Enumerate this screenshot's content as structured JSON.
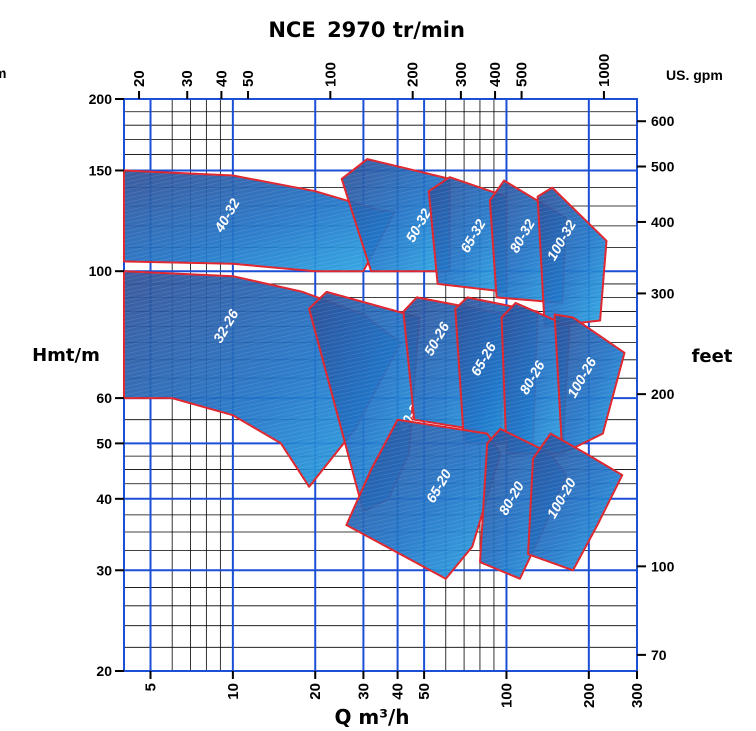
{
  "chart_data": {
    "type": "area",
    "title_left": "NCE",
    "title_right": "2970 tr/min",
    "xlabel": "Q m³/h",
    "ylabel_left": "Hmt/m",
    "ylabel_right": "feet",
    "top_axis_unit": "US. gpm",
    "left_edge_unit": "m",
    "x_scale": "log",
    "y_scale": "log",
    "xlim": [
      4,
      300
    ],
    "ylim": [
      20,
      200
    ],
    "grid": true,
    "x_ticks": [
      {
        "value": 5,
        "label": "5"
      },
      {
        "value": 10,
        "label": "10"
      },
      {
        "value": 20,
        "label": "20"
      },
      {
        "value": 30,
        "label": "30"
      },
      {
        "value": 40,
        "label": "40"
      },
      {
        "value": 50,
        "label": "50"
      },
      {
        "value": 100,
        "label": "100"
      },
      {
        "value": 200,
        "label": "200"
      },
      {
        "value": 300,
        "label": "300"
      }
    ],
    "y_ticks": [
      {
        "value": 20,
        "label": "20"
      },
      {
        "value": 30,
        "label": "30"
      },
      {
        "value": 40,
        "label": "40"
      },
      {
        "value": 50,
        "label": "50"
      },
      {
        "value": 60,
        "label": "60"
      },
      {
        "value": 100,
        "label": "100"
      },
      {
        "value": 150,
        "label": "150"
      },
      {
        "value": 200,
        "label": "200"
      }
    ],
    "top_ticks": [
      {
        "value": 4.54,
        "label": "20"
      },
      {
        "value": 6.81,
        "label": "30"
      },
      {
        "value": 9.08,
        "label": "40"
      },
      {
        "value": 11.36,
        "label": "50"
      },
      {
        "value": 22.71,
        "label": "100"
      },
      {
        "value": 45.42,
        "label": "200"
      },
      {
        "value": 68.14,
        "label": "300"
      },
      {
        "value": 90.85,
        "label": "400"
      },
      {
        "value": 113.56,
        "label": "500"
      },
      {
        "value": 227.12,
        "label": "1000"
      }
    ],
    "right_ticks": [
      {
        "value": 21.34,
        "label": "70"
      },
      {
        "value": 30.48,
        "label": "100"
      },
      {
        "value": 60.96,
        "label": "200"
      },
      {
        "value": 91.44,
        "label": "300"
      },
      {
        "value": 121.92,
        "label": "400"
      },
      {
        "value": 152.4,
        "label": "500"
      },
      {
        "value": 182.88,
        "label": "600"
      }
    ],
    "series": [
      {
        "name": "40-32",
        "label_at": [
          9.6,
          125
        ],
        "polygon": [
          [
            4,
            150
          ],
          [
            10,
            147
          ],
          [
            20,
            138
          ],
          [
            34,
            128
          ],
          [
            39,
            127
          ],
          [
            30,
            100
          ],
          [
            20,
            100
          ],
          [
            10,
            103
          ],
          [
            4,
            104
          ]
        ]
      },
      {
        "name": "32-26",
        "label_at": [
          9.5,
          80
        ],
        "polygon": [
          [
            4,
            100
          ],
          [
            10,
            98
          ],
          [
            18,
            92
          ],
          [
            30,
            84
          ],
          [
            41,
            75
          ],
          [
            28,
            53
          ],
          [
            19,
            42
          ],
          [
            15,
            50
          ],
          [
            10,
            56
          ],
          [
            6,
            60
          ],
          [
            4,
            60
          ]
        ]
      },
      {
        "name": "50-32",
        "label_at": [
          48,
          120
        ],
        "polygon": [
          [
            25,
            145
          ],
          [
            31,
            157
          ],
          [
            62,
            145
          ],
          [
            62,
            100
          ],
          [
            32,
            100
          ]
        ]
      },
      {
        "name": "65-32",
        "label_at": [
          76,
          115
        ],
        "polygon": [
          [
            52,
            138
          ],
          [
            62,
            146
          ],
          [
            100,
            135
          ],
          [
            100,
            92
          ],
          [
            56,
            95
          ]
        ]
      },
      {
        "name": "80-32",
        "label_at": [
          115,
          115
        ],
        "polygon": [
          [
            87,
            133
          ],
          [
            98,
            144
          ],
          [
            165,
            124
          ],
          [
            160,
            88
          ],
          [
            92,
            90
          ]
        ]
      },
      {
        "name": "100-32",
        "label_at": [
          160,
          113
        ],
        "polygon": [
          [
            130,
            135
          ],
          [
            147,
            140
          ],
          [
            232,
            113
          ],
          [
            220,
            82
          ],
          [
            138,
            80
          ]
        ]
      },
      {
        "name": "40-26",
        "label_at": [
          45,
          56
        ],
        "polygon": [
          [
            19,
            86
          ],
          [
            22,
            92
          ],
          [
            48,
            83
          ],
          [
            44,
            48
          ],
          [
            37,
            40
          ],
          [
            30,
            38
          ]
        ]
      },
      {
        "name": "50-26",
        "label_at": [
          56,
          76
        ],
        "polygon": [
          [
            42,
            85
          ],
          [
            47,
            90
          ],
          [
            100,
            84
          ],
          [
            95,
            52
          ],
          [
            46,
            55
          ]
        ]
      },
      {
        "name": "65-26",
        "label_at": [
          83,
          70
        ],
        "polygon": [
          [
            65,
            86
          ],
          [
            72,
            90
          ],
          [
            130,
            85
          ],
          [
            125,
            50
          ],
          [
            70,
            50
          ]
        ]
      },
      {
        "name": "80-26",
        "label_at": [
          125,
          65
        ],
        "polygon": [
          [
            96,
            83
          ],
          [
            108,
            88
          ],
          [
            170,
            80
          ],
          [
            160,
            48
          ],
          [
            100,
            48
          ]
        ]
      },
      {
        "name": "100-26",
        "label_at": [
          190,
          65
        ],
        "polygon": [
          [
            150,
            84
          ],
          [
            175,
            83
          ],
          [
            270,
            72
          ],
          [
            225,
            52
          ],
          [
            160,
            48
          ]
        ]
      },
      {
        "name": "65-20",
        "label_at": [
          57,
          42
        ],
        "polygon": [
          [
            32,
            45
          ],
          [
            40,
            55
          ],
          [
            85,
            52
          ],
          [
            95,
            48
          ],
          [
            75,
            33
          ],
          [
            60,
            29
          ],
          [
            26,
            36
          ]
        ]
      },
      {
        "name": "80-20",
        "label_at": [
          105,
          40
        ],
        "polygon": [
          [
            85,
            50
          ],
          [
            95,
            53
          ],
          [
            145,
            48
          ],
          [
            165,
            44
          ],
          [
            135,
            35
          ],
          [
            112,
            29
          ],
          [
            80,
            31
          ]
        ]
      },
      {
        "name": "100-20",
        "label_at": [
          160,
          40
        ],
        "polygon": [
          [
            125,
            47
          ],
          [
            145,
            52
          ],
          [
            195,
            48
          ],
          [
            265,
            44
          ],
          [
            215,
            36
          ],
          [
            175,
            30
          ],
          [
            120,
            32
          ]
        ]
      }
    ]
  },
  "colors": {
    "grid_blue": "#1a4fd6",
    "grid_black": "#000000",
    "zone_dark": "#2f4f96",
    "zone_mid": "#1f74c8",
    "zone_light": "#2aa7e4",
    "zone_edge": "#e0262e",
    "zone_text": "#ffffff"
  }
}
